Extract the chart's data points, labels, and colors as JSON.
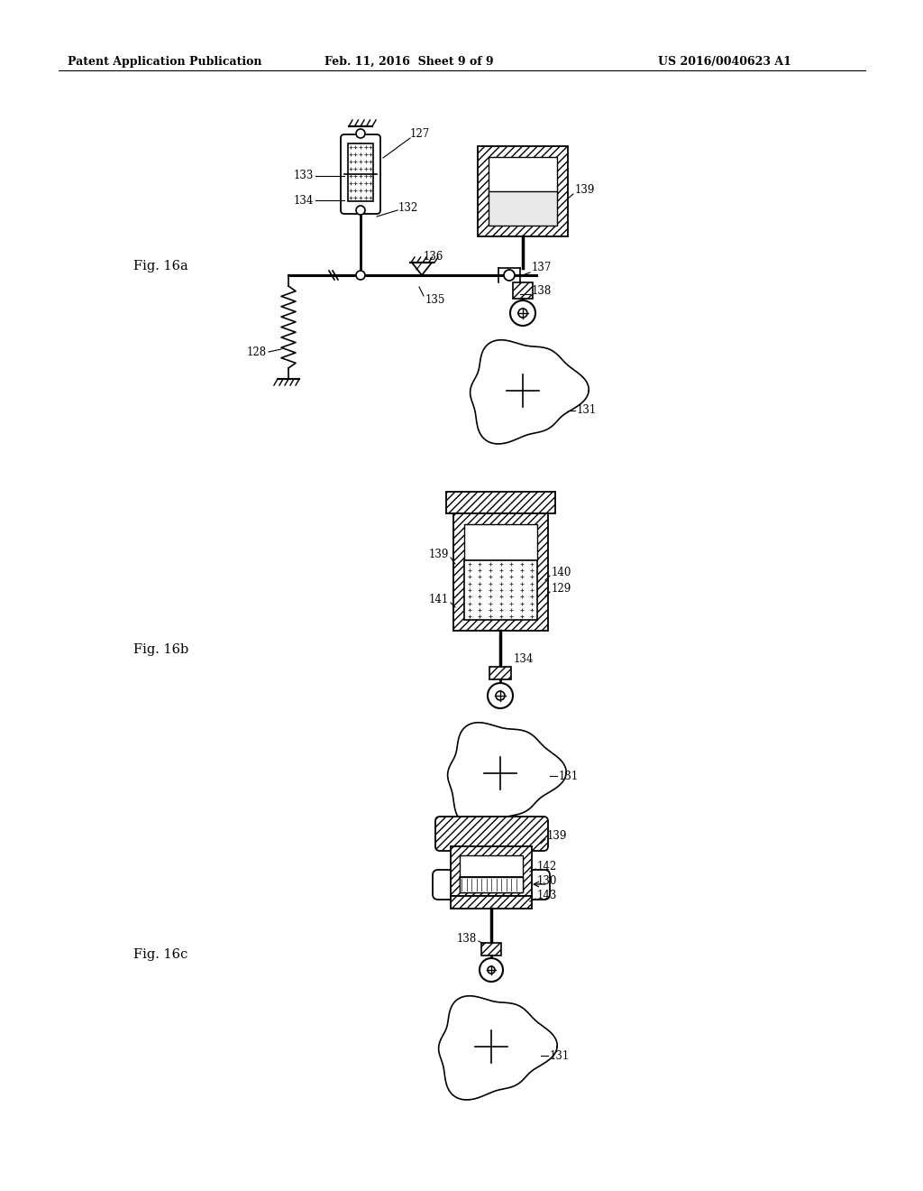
{
  "title_left": "Patent Application Publication",
  "title_mid": "Feb. 11, 2016  Sheet 9 of 9",
  "title_right": "US 2016/0040623 A1",
  "background": "#ffffff",
  "line_color": "#000000"
}
